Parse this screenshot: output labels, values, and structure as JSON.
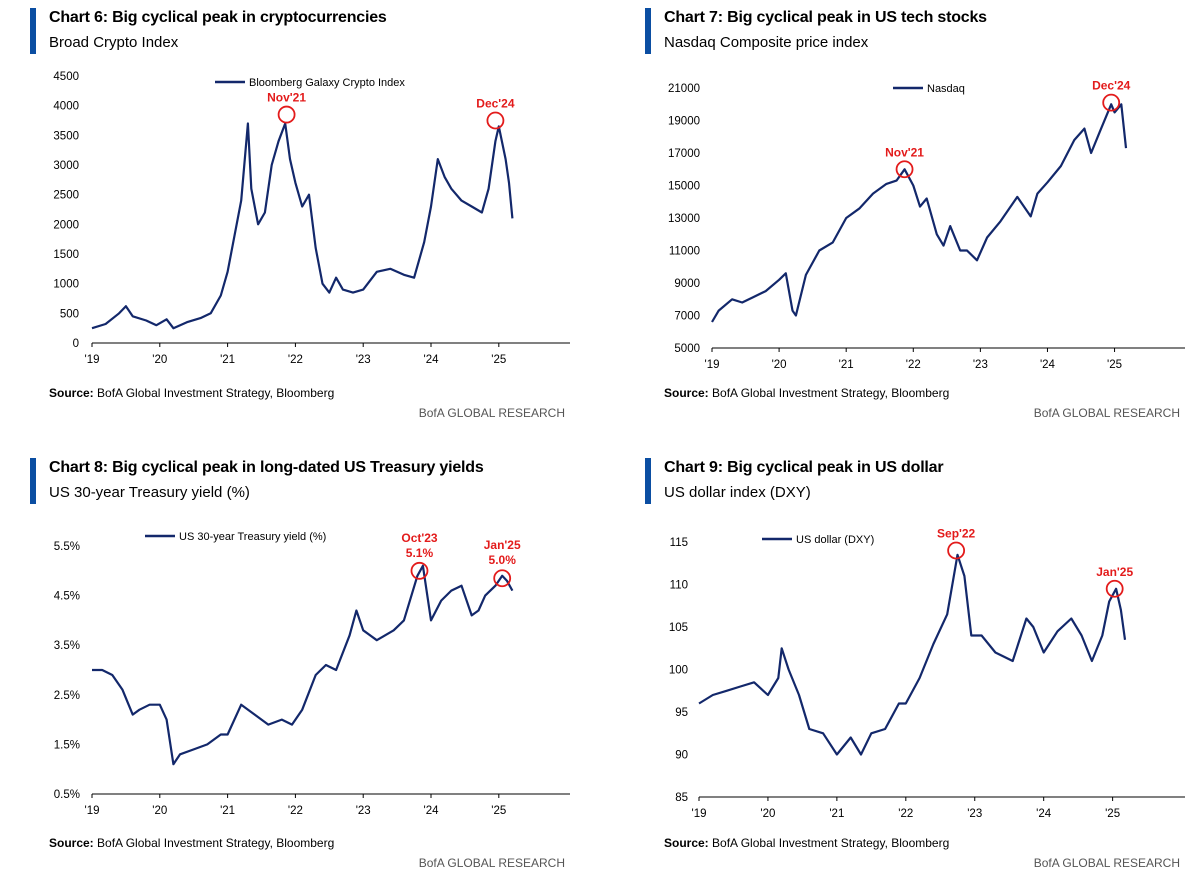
{
  "chart_data": [
    {
      "type": "line",
      "title": "Chart 6: Big cyclical peak in cryptocurrencies",
      "subtitle": "Broad Crypto Index",
      "xlim": [
        2019.0,
        2026.05
      ],
      "ylim": [
        0,
        4500
      ],
      "x_ticks": [
        2019,
        2020,
        2021,
        2022,
        2023,
        2024,
        2025
      ],
      "x_tick_labels": [
        "'19",
        "'20",
        "'21",
        "'22",
        "'23",
        "'24",
        "'25"
      ],
      "y_ticks": [
        0,
        500,
        1000,
        1500,
        2000,
        2500,
        3000,
        3500,
        4000,
        4500
      ],
      "y_tick_labels": [
        "0",
        "500",
        "1000",
        "1500",
        "2000",
        "2500",
        "3000",
        "3500",
        "4000",
        "4500"
      ],
      "legend": "top-center",
      "series": [
        {
          "name": "Bloomberg Galaxy Crypto Index",
          "color": "#13286b",
          "x": [
            2019.0,
            2019.2,
            2019.4,
            2019.5,
            2019.6,
            2019.8,
            2019.95,
            2020.1,
            2020.2,
            2020.4,
            2020.6,
            2020.75,
            2020.9,
            2021.0,
            2021.1,
            2021.2,
            2021.3,
            2021.35,
            2021.45,
            2021.55,
            2021.65,
            2021.75,
            2021.85,
            2021.92,
            2022.0,
            2022.1,
            2022.2,
            2022.3,
            2022.4,
            2022.5,
            2022.6,
            2022.7,
            2022.85,
            2023.0,
            2023.2,
            2023.4,
            2023.6,
            2023.75,
            2023.9,
            2024.0,
            2024.1,
            2024.2,
            2024.3,
            2024.45,
            2024.6,
            2024.75,
            2024.85,
            2024.95,
            2025.0,
            2025.1,
            2025.15,
            2025.2
          ],
          "y": [
            250,
            320,
            500,
            620,
            450,
            380,
            300,
            400,
            250,
            350,
            420,
            500,
            800,
            1200,
            1800,
            2400,
            3700,
            2600,
            2000,
            2200,
            3000,
            3400,
            3700,
            3100,
            2700,
            2300,
            2500,
            1600,
            1000,
            850,
            1100,
            900,
            850,
            900,
            1200,
            1250,
            1150,
            1100,
            1700,
            2300,
            3100,
            2800,
            2600,
            2400,
            2300,
            2200,
            2600,
            3400,
            3650,
            3100,
            2700,
            2100
          ]
        }
      ],
      "annotations": [
        {
          "label": "Nov'21",
          "x": 2021.87,
          "y": 3850
        },
        {
          "label": "Dec'24",
          "x": 2024.95,
          "y": 3750
        }
      ],
      "source_label": "Source:",
      "source_text": "BofA Global Investment Strategy, Bloomberg",
      "brand": "BofA GLOBAL RESEARCH"
    },
    {
      "type": "line",
      "title": "Chart 7: Big cyclical peak in US tech stocks",
      "subtitle": "Nasdaq Composite price index",
      "xlim": [
        2019.0,
        2026.05
      ],
      "ylim": [
        5000,
        21000
      ],
      "x_ticks": [
        2019,
        2020,
        2021,
        2022,
        2023,
        2024,
        2025
      ],
      "x_tick_labels": [
        "'19",
        "'20",
        "'21",
        "'22",
        "'23",
        "'24",
        "'25"
      ],
      "y_ticks": [
        5000,
        7000,
        9000,
        11000,
        13000,
        15000,
        17000,
        19000,
        21000
      ],
      "y_tick_labels": [
        "5000",
        "7000",
        "9000",
        "11000",
        "13000",
        "15000",
        "17000",
        "19000",
        "21000"
      ],
      "legend": "top-center",
      "series": [
        {
          "name": "Nasdaq",
          "color": "#13286b",
          "x": [
            2019.0,
            2019.1,
            2019.3,
            2019.45,
            2019.6,
            2019.8,
            2020.0,
            2020.1,
            2020.2,
            2020.25,
            2020.4,
            2020.6,
            2020.8,
            2021.0,
            2021.2,
            2021.4,
            2021.6,
            2021.75,
            2021.87,
            2022.0,
            2022.1,
            2022.2,
            2022.35,
            2022.45,
            2022.55,
            2022.7,
            2022.8,
            2022.95,
            2023.1,
            2023.3,
            2023.55,
            2023.75,
            2023.85,
            2024.0,
            2024.2,
            2024.4,
            2024.55,
            2024.65,
            2024.8,
            2024.95,
            2025.0,
            2025.1,
            2025.17
          ],
          "y": [
            6600,
            7300,
            8000,
            7800,
            8100,
            8500,
            9200,
            9600,
            7300,
            7000,
            9500,
            11000,
            11500,
            13000,
            13600,
            14500,
            15100,
            15300,
            16000,
            15000,
            13700,
            14200,
            12000,
            11300,
            12500,
            11000,
            11000,
            10400,
            11800,
            12800,
            14300,
            13100,
            14500,
            15200,
            16200,
            17800,
            18500,
            17000,
            18500,
            20000,
            19500,
            20000,
            17300
          ]
        }
      ],
      "annotations": [
        {
          "label": "Nov'21",
          "x": 2021.87,
          "y": 16000
        },
        {
          "label": "Dec'24",
          "x": 2024.95,
          "y": 20100
        }
      ],
      "source_label": "Source:",
      "source_text": "BofA Global Investment Strategy, Bloomberg",
      "brand": "BofA GLOBAL RESEARCH"
    },
    {
      "type": "line",
      "title": "Chart 8: Big cyclical peak in long-dated US Treasury yields",
      "subtitle": "US 30-year Treasury yield (%)",
      "xlim": [
        2019.0,
        2026.05
      ],
      "ylim": [
        0.5,
        5.5
      ],
      "x_ticks": [
        2019,
        2020,
        2021,
        2022,
        2023,
        2024,
        2025
      ],
      "x_tick_labels": [
        "'19",
        "'20",
        "'21",
        "'22",
        "'23",
        "'24",
        "'25"
      ],
      "y_ticks": [
        0.5,
        1.5,
        2.5,
        3.5,
        4.5,
        5.5
      ],
      "y_tick_labels": [
        "0.5%",
        "1.5%",
        "2.5%",
        "3.5%",
        "4.5%",
        "5.5%"
      ],
      "legend": "top-left",
      "series": [
        {
          "name": "US 30-year Treasury yield (%)",
          "color": "#13286b",
          "x": [
            2019.0,
            2019.15,
            2019.3,
            2019.45,
            2019.6,
            2019.7,
            2019.85,
            2020.0,
            2020.1,
            2020.2,
            2020.3,
            2020.5,
            2020.7,
            2020.9,
            2021.0,
            2021.2,
            2021.4,
            2021.6,
            2021.8,
            2021.95,
            2022.1,
            2022.3,
            2022.45,
            2022.6,
            2022.8,
            2022.9,
            2023.0,
            2023.2,
            2023.45,
            2023.6,
            2023.8,
            2023.88,
            2024.0,
            2024.15,
            2024.3,
            2024.45,
            2024.6,
            2024.7,
            2024.8,
            2024.95,
            2025.05,
            2025.12,
            2025.2
          ],
          "y": [
            3.0,
            3.0,
            2.9,
            2.6,
            2.1,
            2.2,
            2.3,
            2.3,
            2.0,
            1.1,
            1.3,
            1.4,
            1.5,
            1.7,
            1.7,
            2.3,
            2.1,
            1.9,
            2.0,
            1.9,
            2.2,
            2.9,
            3.1,
            3.0,
            3.7,
            4.2,
            3.8,
            3.6,
            3.8,
            4.0,
            4.9,
            5.1,
            4.0,
            4.4,
            4.6,
            4.7,
            4.1,
            4.2,
            4.5,
            4.7,
            4.9,
            4.8,
            4.6
          ]
        }
      ],
      "annotations": [
        {
          "label": "Oct'23",
          "label2": "5.1%",
          "x": 2023.83,
          "y": 5.0
        },
        {
          "label": "Jan'25",
          "label2": "5.0%",
          "x": 2025.05,
          "y": 4.85
        }
      ],
      "source_label": "Source:",
      "source_text": "BofA Global Investment Strategy, Bloomberg",
      "brand": "BofA GLOBAL RESEARCH"
    },
    {
      "type": "line",
      "title": "Chart 9: Big cyclical peak in US dollar",
      "subtitle": "US dollar index (DXY)",
      "xlim": [
        2019.0,
        2026.05
      ],
      "ylim": [
        85,
        115
      ],
      "x_ticks": [
        2019,
        2020,
        2021,
        2022,
        2023,
        2024,
        2025
      ],
      "x_tick_labels": [
        "'19",
        "'20",
        "'21",
        "'22",
        "'23",
        "'24",
        "'25"
      ],
      "y_ticks": [
        85,
        90,
        95,
        100,
        105,
        110,
        115
      ],
      "y_tick_labels": [
        "85",
        "90",
        "95",
        "100",
        "105",
        "110",
        "115"
      ],
      "legend": "top-left",
      "series": [
        {
          "name": "US dollar (DXY)",
          "color": "#13286b",
          "x": [
            2019.0,
            2019.2,
            2019.4,
            2019.6,
            2019.8,
            2020.0,
            2020.15,
            2020.2,
            2020.3,
            2020.45,
            2020.6,
            2020.8,
            2021.0,
            2021.2,
            2021.35,
            2021.5,
            2021.7,
            2021.9,
            2022.0,
            2022.2,
            2022.4,
            2022.6,
            2022.75,
            2022.85,
            2022.95,
            2023.1,
            2023.3,
            2023.55,
            2023.75,
            2023.85,
            2024.0,
            2024.2,
            2024.4,
            2024.55,
            2024.7,
            2024.85,
            2024.95,
            2025.05,
            2025.12,
            2025.18
          ],
          "y": [
            96,
            97,
            97.5,
            98,
            98.5,
            97,
            99,
            102.5,
            100,
            97,
            93,
            92.5,
            90,
            92,
            90,
            92.5,
            93,
            96,
            96,
            99,
            103,
            106.5,
            113.5,
            111,
            104,
            104,
            102,
            101,
            106,
            105,
            102,
            104.5,
            106,
            104,
            101,
            104,
            108,
            109.5,
            107,
            103.5
          ]
        }
      ],
      "annotations": [
        {
          "label": "Sep'22",
          "x": 2022.73,
          "y": 114
        },
        {
          "label": "Jan'25",
          "x": 2025.03,
          "y": 109.5
        }
      ],
      "source_label": "Source:",
      "source_text": "BofA Global Investment Strategy, Bloomberg",
      "brand": "BofA GLOBAL RESEARCH"
    }
  ]
}
